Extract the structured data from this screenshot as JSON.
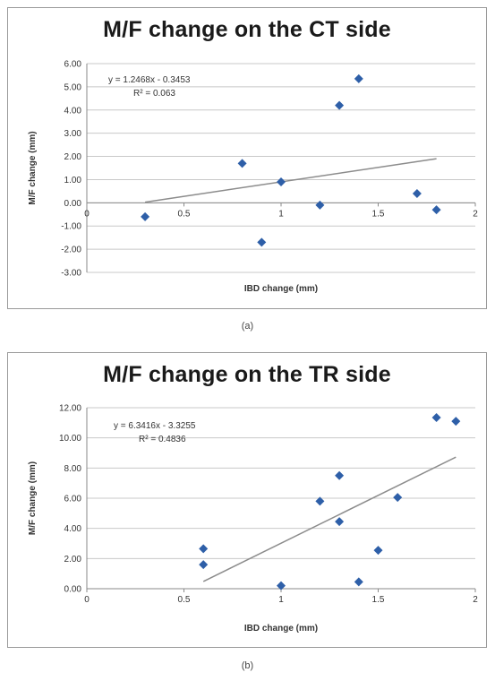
{
  "chart_data": [
    {
      "type": "scatter",
      "title": "M/F change on the CT side",
      "xlabel": "IBD change (mm)",
      "ylabel": "M/F change (mm)",
      "xlim": [
        0,
        2
      ],
      "ylim": [
        -3,
        6
      ],
      "x_ticks": [
        "0",
        "0.5",
        "1",
        "1.5",
        "2"
      ],
      "y_ticks": [
        "-3.00",
        "-2.00",
        "-1.00",
        "0.00",
        "1.00",
        "2.00",
        "3.00",
        "4.00",
        "5.00",
        "6.00"
      ],
      "x_axis_at_zero": true,
      "grid": "horizontal",
      "marker_color": "#2e5fa8",
      "trendline_color": "#8c8c8c",
      "points": [
        {
          "x": 0.3,
          "y": -0.6
        },
        {
          "x": 0.8,
          "y": 1.7
        },
        {
          "x": 0.9,
          "y": -1.7
        },
        {
          "x": 1.0,
          "y": 0.9
        },
        {
          "x": 1.2,
          "y": -0.1
        },
        {
          "x": 1.3,
          "y": 4.2
        },
        {
          "x": 1.4,
          "y": 5.35
        },
        {
          "x": 1.7,
          "y": 0.4
        },
        {
          "x": 1.8,
          "y": -0.3
        }
      ],
      "trendline": {
        "x": [
          0.3,
          1.8
        ],
        "slope": 1.2468,
        "intercept": -0.3453
      },
      "equation": "y = 1.2468x - 0.3453",
      "r_squared": "R² = 0.063",
      "caption": "(a)"
    },
    {
      "type": "scatter",
      "title": "M/F change on the TR side",
      "xlabel": "IBD change (mm)",
      "ylabel": "M/F change (mm)",
      "xlim": [
        0,
        2
      ],
      "ylim": [
        0,
        12
      ],
      "x_ticks": [
        "0",
        "0.5",
        "1",
        "1.5",
        "2"
      ],
      "y_ticks": [
        "0.00",
        "2.00",
        "4.00",
        "6.00",
        "8.00",
        "10.00",
        "12.00"
      ],
      "x_axis_at_zero": true,
      "grid": "horizontal",
      "marker_color": "#2e5fa8",
      "trendline_color": "#8c8c8c",
      "points": [
        {
          "x": 0.6,
          "y": 2.65
        },
        {
          "x": 0.6,
          "y": 1.6
        },
        {
          "x": 1.0,
          "y": 0.2
        },
        {
          "x": 1.2,
          "y": 5.8
        },
        {
          "x": 1.3,
          "y": 7.5
        },
        {
          "x": 1.3,
          "y": 4.45
        },
        {
          "x": 1.4,
          "y": 0.45
        },
        {
          "x": 1.5,
          "y": 2.55
        },
        {
          "x": 1.6,
          "y": 6.05
        },
        {
          "x": 1.8,
          "y": 11.35
        },
        {
          "x": 1.9,
          "y": 11.1
        }
      ],
      "trendline": {
        "x": [
          0.6,
          1.9
        ],
        "slope": 6.3416,
        "intercept": -3.3255
      },
      "equation": "y = 6.3416x - 3.3255",
      "r_squared": "R² = 0.4836",
      "caption": "(b)"
    }
  ]
}
